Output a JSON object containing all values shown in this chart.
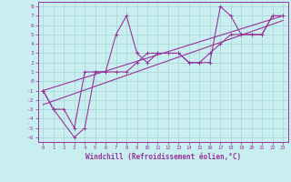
{
  "xlabel": "Windchill (Refroidissement éolien,°C)",
  "background_color": "#c8eef0",
  "grid_color": "#9ecece",
  "line_color": "#993399",
  "spine_color": "#993399",
  "xlim": [
    -0.5,
    23.5
  ],
  "ylim": [
    -6.5,
    8.5
  ],
  "xticks": [
    0,
    1,
    2,
    3,
    4,
    5,
    6,
    7,
    8,
    9,
    10,
    11,
    12,
    13,
    14,
    15,
    16,
    17,
    18,
    19,
    20,
    21,
    22,
    23
  ],
  "yticks": [
    -6,
    -5,
    -4,
    -3,
    -2,
    -1,
    0,
    1,
    2,
    3,
    4,
    5,
    6,
    7,
    8
  ],
  "series1_x": [
    0,
    1,
    3,
    4,
    5,
    6,
    7,
    8,
    9,
    10,
    11,
    12,
    13,
    14,
    15,
    16,
    17,
    18,
    19,
    20,
    21,
    22,
    23
  ],
  "series1_y": [
    -1,
    -3,
    -6,
    -5,
    1,
    1,
    5,
    7,
    3,
    2,
    3,
    3,
    3,
    2,
    2,
    2,
    8,
    7,
    5,
    5,
    5,
    7,
    7
  ],
  "series2_x": [
    0,
    1,
    2,
    3,
    4,
    5,
    6,
    7,
    8,
    9,
    10,
    11,
    12,
    13,
    14,
    15,
    16,
    17,
    18,
    19,
    20,
    21,
    22,
    23
  ],
  "series2_y": [
    -1,
    -3,
    -3,
    -5,
    1,
    1,
    1,
    1,
    1,
    2,
    3,
    3,
    3,
    3,
    2,
    2,
    3,
    4,
    5,
    5,
    5,
    5,
    7,
    7
  ],
  "line3_x": [
    0,
    23
  ],
  "line3_y": [
    -1.0,
    7.0
  ],
  "line4_x": [
    0,
    23
  ],
  "line4_y": [
    -2.5,
    6.5
  ]
}
